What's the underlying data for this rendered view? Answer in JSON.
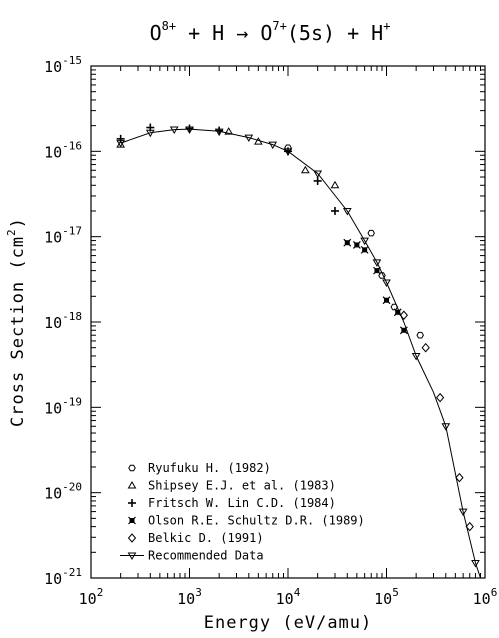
{
  "chart_data": {
    "type": "scatter",
    "title": {
      "p1": "O",
      "p1_sup": "8+",
      "p2": " + H → ",
      "p3": "O",
      "p3_sup": "7+",
      "p4": "(5s) + H",
      "p4_sup": "+"
    },
    "xlabel": "Energy (eV/amu)",
    "ylabel": "Cross Section (cm",
    "ylabel_sup": "2",
    "ylabel_end": ")",
    "x_scale": "log",
    "y_scale": "log",
    "xlim": [
      100,
      1000000
    ],
    "ylim": [
      1e-21,
      1e-15
    ],
    "x_ticks": [
      {
        "value": 100,
        "base": "10",
        "exp": "2"
      },
      {
        "value": 1000,
        "base": "10",
        "exp": "3"
      },
      {
        "value": 10000,
        "base": "10",
        "exp": "4"
      },
      {
        "value": 100000,
        "base": "10",
        "exp": "5"
      },
      {
        "value": 1000000,
        "base": "10",
        "exp": "6"
      }
    ],
    "y_ticks": [
      {
        "value": 1e-21,
        "base": "10",
        "exp": "-21"
      },
      {
        "value": 1e-20,
        "base": "10",
        "exp": "-20"
      },
      {
        "value": 1e-19,
        "base": "10",
        "exp": "-19"
      },
      {
        "value": 1e-18,
        "base": "10",
        "exp": "-18"
      },
      {
        "value": 1e-17,
        "base": "10",
        "exp": "-17"
      },
      {
        "value": 1e-16,
        "base": "10",
        "exp": "-16"
      },
      {
        "value": 1e-15,
        "base": "10",
        "exp": "-15"
      }
    ],
    "legend_position": "bottom-left",
    "series": [
      {
        "name": "Ryufuku H. (1982)",
        "marker": "hexagon",
        "points": [
          [
            10000.0,
            1.1e-16
          ],
          [
            70000.0,
            1.1e-17
          ],
          [
            90000.0,
            3.5e-18
          ],
          [
            120000.0,
            1.5e-18
          ],
          [
            220000.0,
            7e-19
          ]
        ]
      },
      {
        "name": "Shipsey E.J. et al. (1983)",
        "marker": "triangle-up",
        "points": [
          [
            200,
            1.2e-16
          ],
          [
            2500,
            1.7e-16
          ],
          [
            5000,
            1.3e-16
          ],
          [
            15000.0,
            6e-17
          ],
          [
            30000.0,
            4e-17
          ]
        ]
      },
      {
        "name": "Fritsch W. Lin C.D. (1984)",
        "marker": "cross-plus",
        "points": [
          [
            200,
            1.4e-16
          ],
          [
            400,
            1.9e-16
          ],
          [
            1000,
            1.85e-16
          ],
          [
            2000,
            1.75e-16
          ],
          [
            10000.0,
            1e-16
          ],
          [
            20000.0,
            4.5e-17
          ],
          [
            30000.0,
            2e-17
          ]
        ]
      },
      {
        "name": "Olson R.E. Schultz D.R. (1989)",
        "marker": "filled-x",
        "points": [
          [
            40000.0,
            8.5e-18
          ],
          [
            50000.0,
            8e-18
          ],
          [
            60000.0,
            7e-18
          ],
          [
            80000.0,
            4e-18
          ],
          [
            100000.0,
            1.8e-18
          ],
          [
            130000.0,
            1.3e-18
          ],
          [
            150000.0,
            8e-19
          ]
        ]
      },
      {
        "name": "Belkic D. (1991)",
        "marker": "diamond",
        "points": [
          [
            150000.0,
            1.2e-18
          ],
          [
            250000.0,
            5e-19
          ],
          [
            350000.0,
            1.3e-19
          ],
          [
            550000.0,
            1.5e-20
          ],
          [
            700000.0,
            4e-21
          ]
        ]
      },
      {
        "name": "Recommended Data",
        "marker": "triangle-down-line",
        "points": [
          [
            200,
            1.25e-16
          ],
          [
            400,
            1.65e-16
          ],
          [
            700,
            1.8e-16
          ],
          [
            1000,
            1.8e-16
          ],
          [
            2000,
            1.7e-16
          ],
          [
            4000,
            1.45e-16
          ],
          [
            7000,
            1.2e-16
          ],
          [
            10000.0,
            1e-16
          ],
          [
            20000.0,
            5.5e-17
          ],
          [
            40000.0,
            2e-17
          ],
          [
            60000.0,
            9e-18
          ],
          [
            80000.0,
            5e-18
          ],
          [
            100000.0,
            2.9e-18
          ],
          [
            200000.0,
            4e-19
          ],
          [
            400000.0,
            6e-20
          ],
          [
            600000.0,
            6e-21
          ],
          [
            800000.0,
            1.5e-21
          ]
        ],
        "curve": [
          [
            200,
            1.25e-16
          ],
          [
            400,
            1.65e-16
          ],
          [
            700,
            1.8e-16
          ],
          [
            1000,
            1.82e-16
          ],
          [
            2000,
            1.72e-16
          ],
          [
            4000,
            1.45e-16
          ],
          [
            7000,
            1.2e-16
          ],
          [
            10000.0,
            1e-16
          ],
          [
            20000.0,
            5.5e-17
          ],
          [
            40000.0,
            2e-17
          ],
          [
            60000.0,
            9e-18
          ],
          [
            80000.0,
            5e-18
          ],
          [
            100000.0,
            2.9e-18
          ],
          [
            150000.0,
            1e-18
          ],
          [
            200000.0,
            4e-19
          ],
          [
            300000.0,
            1.5e-19
          ],
          [
            400000.0,
            6e-20
          ],
          [
            600000.0,
            6e-21
          ],
          [
            800000.0,
            1.5e-21
          ],
          [
            900000.0,
            1e-21
          ]
        ]
      }
    ]
  }
}
